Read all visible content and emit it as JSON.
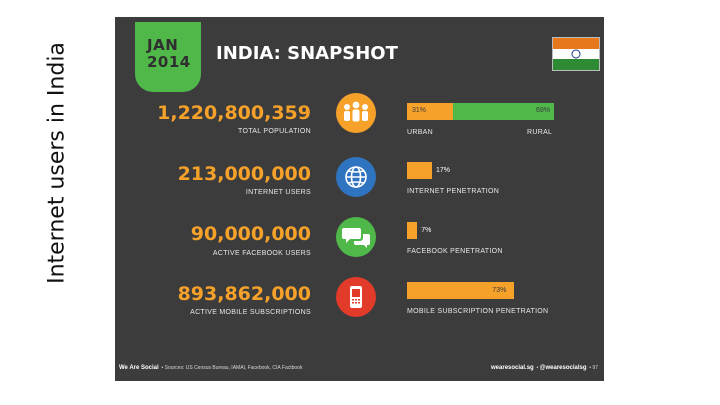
{
  "slide_title": "Internet users in India",
  "date_badge": {
    "month": "JAN",
    "year": "2014"
  },
  "headline": "INDIA: SNAPSHOT",
  "stats": [
    {
      "value": "1,220,800,359",
      "label": "TOTAL POPULATION",
      "icon": "people-icon",
      "icon_color": "#f5a12a"
    },
    {
      "value": "213,000,000",
      "label": "INTERNET USERS",
      "icon": "globe-icon",
      "icon_color": "#2f74c0"
    },
    {
      "value": "90,000,000",
      "label": "ACTIVE FACEBOOK USERS",
      "icon": "chat-bubbles-icon",
      "icon_color": "#4fb849"
    },
    {
      "value": "893,862,000",
      "label": "ACTIVE MOBILE SUBSCRIPTIONS",
      "icon": "mobile-phone-icon",
      "icon_color": "#e23b2a"
    }
  ],
  "urban_rural": {
    "urban_pct": 31,
    "rural_pct": 69,
    "urban_text": "31%",
    "rural_text": "69%",
    "urban_label": "URBAN",
    "rural_label": "RURAL"
  },
  "penetration": [
    {
      "pct": 17,
      "text": "17%",
      "label": "INTERNET PENETRATION"
    },
    {
      "pct": 7,
      "text": "7%",
      "label": "FACEBOOK PENETRATION"
    },
    {
      "pct": 73,
      "text": "73%",
      "label": "MOBILE SUBSCRIPTION PENETRATION"
    }
  ],
  "footer": {
    "brand": "We Are Social",
    "sources": "Sources: US Census Bureau, IAMAI, Facebook, CIA Factbook",
    "site": "wearesocial.sg",
    "handle": "@wearesocialsg",
    "page": "97"
  },
  "colors": {
    "orange": "#f5a12a",
    "green": "#4fb849",
    "background": "#3c3c3c"
  }
}
